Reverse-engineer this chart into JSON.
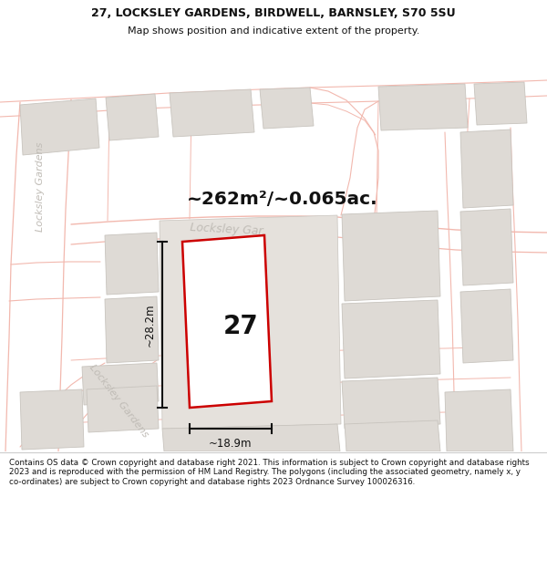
{
  "title_line1": "27, LOCKSLEY GARDENS, BIRDWELL, BARNSLEY, S70 5SU",
  "title_line2": "Map shows position and indicative extent of the property.",
  "area_text": "~262m²/~0.065ac.",
  "label_27": "27",
  "dim_width": "~18.9m",
  "dim_height": "~28.2m",
  "road_label_diag": "Locksley Gar...",
  "road_label_vert_top": "Locksley Gardens",
  "road_label_vert_bot": "Locksley Gardens",
  "footer_text": "Contains OS data © Crown copyright and database right 2021. This information is subject to Crown copyright and database rights 2023 and is reproduced with the permission of HM Land Registry. The polygons (including the associated geometry, namely x, y co-ordinates) are subject to Crown copyright and database rights 2023 Ordnance Survey 100026316.",
  "bg_color": "#f0eeeb",
  "map_bg": "#f0eeeb",
  "road_color": "#f2b8ae",
  "building_fill": "#dedad5",
  "building_edge": "#c8c4be",
  "plot_fill": "#ffffff",
  "plot_color": "#cc0000",
  "plot_linewidth": 1.8,
  "dim_line_color": "#111111",
  "road_text_color": "#c0bcb6",
  "header_bg": "#ffffff",
  "footer_bg": "#ffffff"
}
